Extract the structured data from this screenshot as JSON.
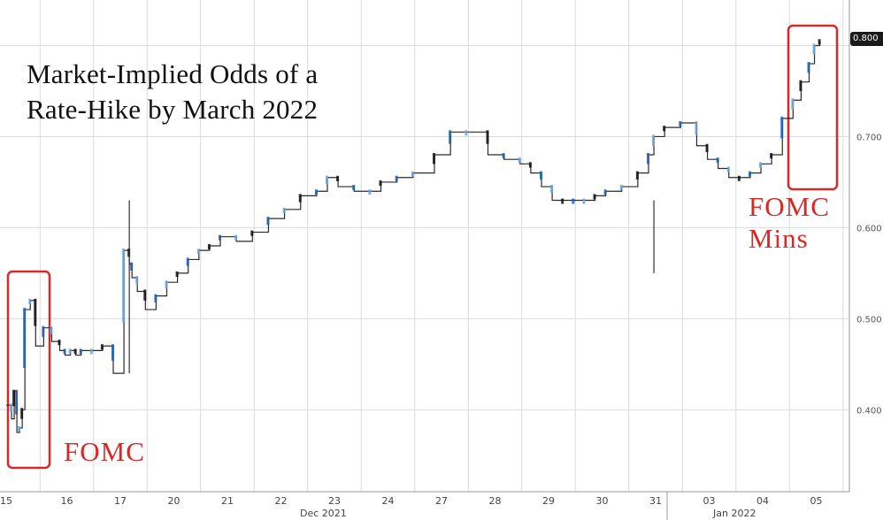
{
  "chart_data": {
    "type": "line",
    "title_lines": [
      "Market-Implied Odds of a",
      "Rate-Hike by March 2022"
    ],
    "x_tick_labels": [
      "15",
      "16",
      "17",
      "20",
      "21",
      "22",
      "23",
      "24",
      "27",
      "28",
      "29",
      "30",
      "31",
      "03",
      "04",
      "05"
    ],
    "x_group_labels": [
      "Dec 2021",
      "Jan 2022"
    ],
    "y_tick_labels": [
      "0.400",
      "0.500",
      "0.600",
      "0.700",
      "0.800"
    ],
    "ylim": [
      0.31,
      0.85
    ],
    "last_value_label": "0.800",
    "grid": true,
    "series": [
      {
        "x": [
          0.0,
          0.1,
          0.15,
          0.2,
          0.25,
          0.3,
          0.35,
          0.45,
          0.55,
          0.7,
          0.85,
          1.0,
          1.1,
          1.2,
          1.3,
          1.4,
          1.6,
          1.8,
          2.0,
          2.2,
          2.3,
          2.35,
          2.45,
          2.6,
          2.8,
          3.0,
          3.2,
          3.4,
          3.6,
          3.8,
          4.0,
          4.3,
          4.6,
          4.9,
          5.2,
          5.5,
          5.8,
          6.0,
          6.2,
          6.5,
          6.8,
          7.0,
          7.3,
          7.6,
          8.0,
          8.3,
          8.6,
          9.0,
          9.3,
          9.6,
          9.8,
          10.0,
          10.2,
          10.4,
          10.6,
          10.8,
          11.0,
          11.2,
          11.5,
          11.8,
          12.0,
          12.1,
          12.3,
          12.6,
          12.9,
          13.1,
          13.3,
          13.5,
          13.7,
          13.9,
          14.1,
          14.3,
          14.5,
          14.7,
          14.85,
          15.0,
          15.1,
          15.2
        ],
        "values": [
          0.405,
          0.39,
          0.42,
          0.375,
          0.38,
          0.4,
          0.51,
          0.52,
          0.47,
          0.49,
          0.475,
          0.465,
          0.46,
          0.465,
          0.46,
          0.465,
          0.465,
          0.47,
          0.44,
          0.575,
          0.56,
          0.545,
          0.53,
          0.51,
          0.525,
          0.54,
          0.55,
          0.565,
          0.575,
          0.58,
          0.59,
          0.585,
          0.595,
          0.61,
          0.62,
          0.635,
          0.64,
          0.655,
          0.645,
          0.64,
          0.64,
          0.65,
          0.655,
          0.66,
          0.68,
          0.705,
          0.705,
          0.68,
          0.675,
          0.67,
          0.66,
          0.645,
          0.63,
          0.63,
          0.63,
          0.63,
          0.635,
          0.64,
          0.645,
          0.66,
          0.68,
          0.7,
          0.71,
          0.715,
          0.69,
          0.675,
          0.665,
          0.655,
          0.655,
          0.66,
          0.67,
          0.68,
          0.72,
          0.74,
          0.76,
          0.78,
          0.8,
          0.805
        ]
      }
    ],
    "annotations": [
      {
        "lines": [
          "FOMC"
        ],
        "color": "#d42a2a"
      },
      {
        "lines": [
          "FOMC",
          "Mins"
        ],
        "color": "#d42a2a"
      }
    ]
  }
}
